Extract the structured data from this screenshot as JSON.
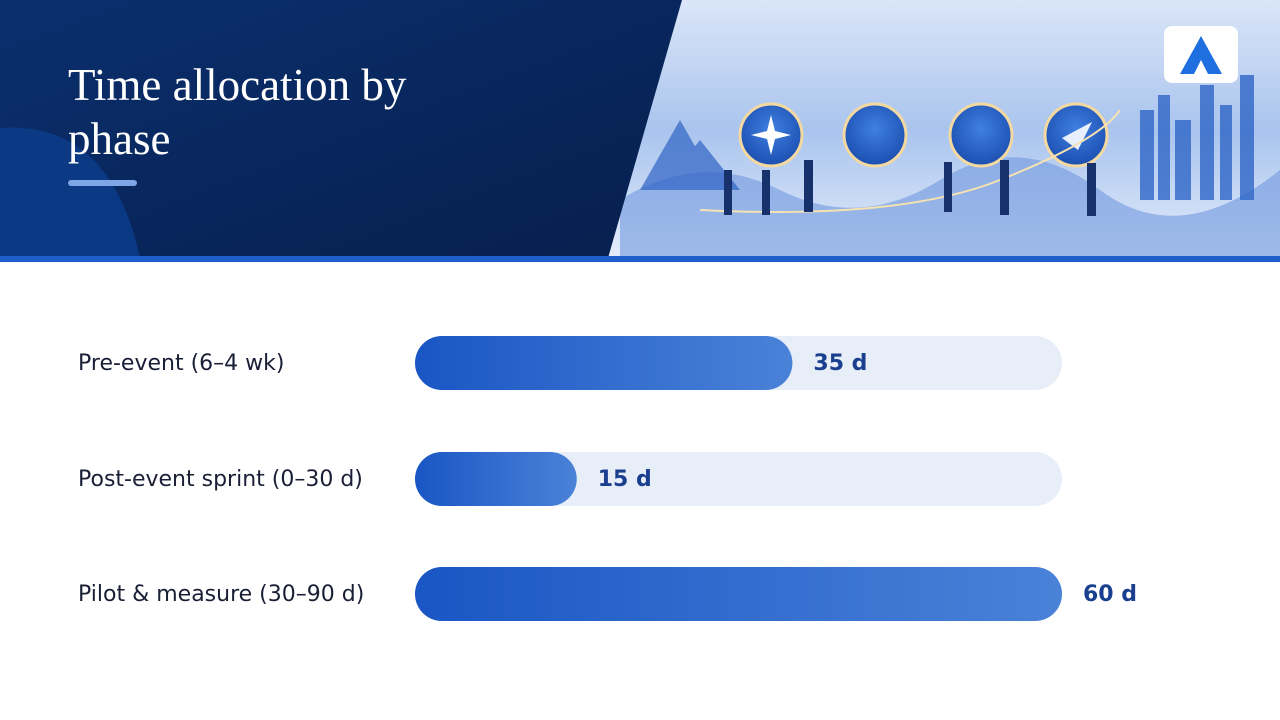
{
  "chart_data": {
    "type": "bar",
    "orientation": "horizontal",
    "title": "Time allocation by phase",
    "categories": [
      "Pre-event (6–4 wk)",
      "Post-event sprint (0–30 d)",
      "Pilot & measure (30–90 d)"
    ],
    "values": [
      35,
      15,
      60
    ],
    "value_labels": [
      "35 d",
      "15 d",
      "60 d"
    ],
    "color": "#1a56c4",
    "xlim": [
      0,
      60
    ]
  }
}
